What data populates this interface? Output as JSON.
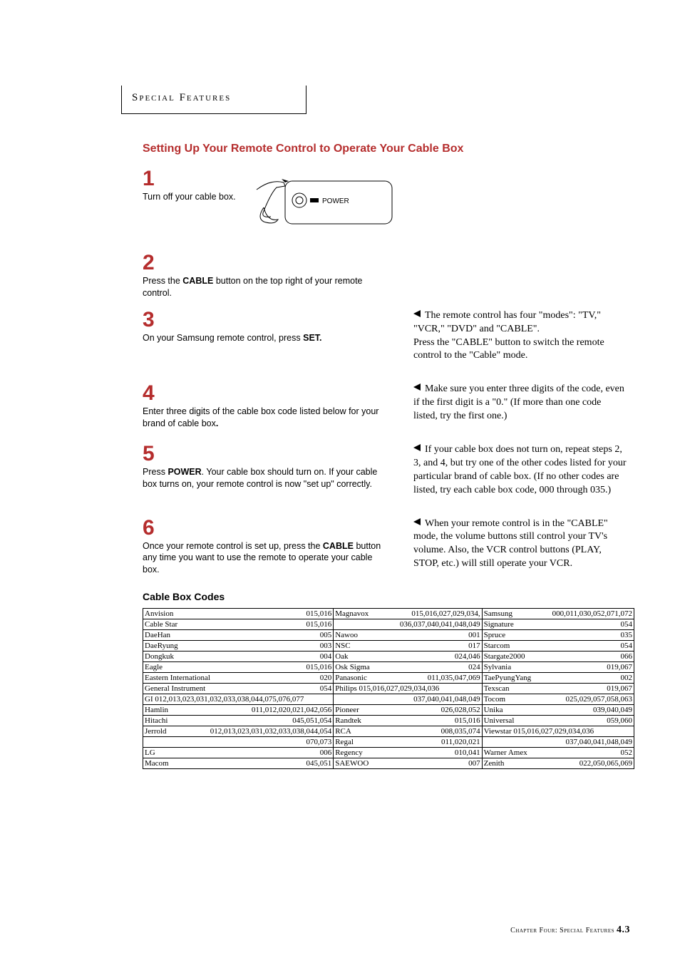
{
  "header": "Special Features",
  "section_title": "Setting Up Your Remote Control to Operate Your Cable Box",
  "steps": {
    "s1": {
      "num": "1",
      "text": "Turn off your cable box."
    },
    "s2": {
      "num": "2",
      "text_a": "Press the ",
      "bold_a": "CABLE",
      "text_b": " button on the top right of your remote control."
    },
    "s3": {
      "num": "3",
      "text_a": "On your Samsung remote control, press ",
      "bold_a": "SET."
    },
    "s4": {
      "num": "4",
      "text_a": "Enter three digits of the cable box code listed below for your brand of cable box",
      "bold_a": "."
    },
    "s5": {
      "num": "5",
      "text_a": "Press ",
      "bold_a": "POWER",
      "text_b": ". Your cable box should turn on. If your cable box turns on, your remote control is now \"set up\" correctly."
    },
    "s6": {
      "num": "6",
      "text_a": "Once your remote control is set up, press the ",
      "bold_a": "CABLE",
      "text_b": " button any time you want to use the remote to operate your cable box."
    }
  },
  "diagram": {
    "power_label": "POWER"
  },
  "notes": {
    "n1a": "The remote control has four \"modes\": \"TV,\"  \"VCR,\" \"DVD\" and \"CABLE\".",
    "n1b": "Press the \"CABLE\" button to switch the remote control to the \"Cable\" mode.",
    "n2": "Make sure you enter three digits of the code, even if the first digit is a \"0.\" (If more than one code listed, try the first one.)",
    "n3": "If your cable box does not turn on, repeat steps 2, 3, and 4, but try one of the other codes listed for your particular brand of cable box. (If no other codes are listed, try each cable box code, 000 through 035.)",
    "n4": "When your remote control is in the \"CABLE\" mode, the volume buttons still control your TV's volume. Also, the VCR control buttons (PLAY, STOP, etc.) will still operate your VCR."
  },
  "codes_title": "Cable Box Codes",
  "codes": [
    [
      [
        "Anvision",
        "015,016"
      ],
      [
        "Magnavox",
        "015,016,027,029,034,"
      ],
      [
        "Samsung",
        "000,011,030,052,071,072"
      ]
    ],
    [
      [
        "Cable Star",
        "015,016"
      ],
      [
        "",
        "036,037,040,041,048,049"
      ],
      [
        "Signature",
        "054"
      ]
    ],
    [
      [
        "DaeHan",
        "005"
      ],
      [
        "Nawoo",
        "001"
      ],
      [
        "Spruce",
        "035"
      ]
    ],
    [
      [
        "DaeRyung",
        "003"
      ],
      [
        "NSC",
        "017"
      ],
      [
        "Starcom",
        "054"
      ]
    ],
    [
      [
        "Dongkuk",
        "004"
      ],
      [
        "Oak",
        "024,046"
      ],
      [
        "Stargate2000",
        "066"
      ]
    ],
    [
      [
        "Eagle",
        "015,016"
      ],
      [
        "Osk Sigma",
        "024"
      ],
      [
        "Sylvania",
        "019,067"
      ]
    ],
    [
      [
        "Eastern International",
        "020"
      ],
      [
        "Panasonic",
        "011,035,047,069"
      ],
      [
        "TaePyungYang",
        "002"
      ]
    ],
    [
      [
        "General Instrument",
        "054"
      ],
      [
        "Philips 015,016,027,029,034,036",
        ""
      ],
      [
        "Texscan",
        "019,067"
      ]
    ],
    [
      [
        "GI  012,013,023,031,032,033,038,044,075,076,077",
        ""
      ],
      [
        "",
        "037,040,041,048,049"
      ],
      [
        "Tocom",
        "025,029,057,058,063"
      ]
    ],
    [
      [
        "Hamlin",
        "011,012,020,021,042,056"
      ],
      [
        "Pioneer",
        "026,028,052"
      ],
      [
        "Unika",
        "039,040,049"
      ]
    ],
    [
      [
        "Hitachi",
        "045,051,054"
      ],
      [
        "Randtek",
        "015,016"
      ],
      [
        "Universal",
        "059,060"
      ]
    ],
    [
      [
        "Jerrold",
        "012,013,023,031,032,033,038,044,054"
      ],
      [
        "RCA",
        "008,035,074"
      ],
      [
        "Viewstar  015,016,027,029,034,036",
        ""
      ]
    ],
    [
      [
        "",
        "070,073"
      ],
      [
        "Regal",
        "011,020,021"
      ],
      [
        "",
        "037,040,041,048,049"
      ]
    ],
    [
      [
        "LG",
        "006"
      ],
      [
        "Regency",
        "010,041"
      ],
      [
        "Warner Amex",
        "052"
      ]
    ],
    [
      [
        "Macom",
        "045,051"
      ],
      [
        "SAEWOO",
        "007"
      ],
      [
        "Zenith",
        "022,050,065,069"
      ]
    ]
  ],
  "footer": {
    "chapter": "Chapter Four: Special Features",
    "page": "4.3"
  },
  "colors": {
    "accent": "#b52d2d",
    "text": "#000000",
    "bg": "#ffffff",
    "border": "#000000"
  }
}
